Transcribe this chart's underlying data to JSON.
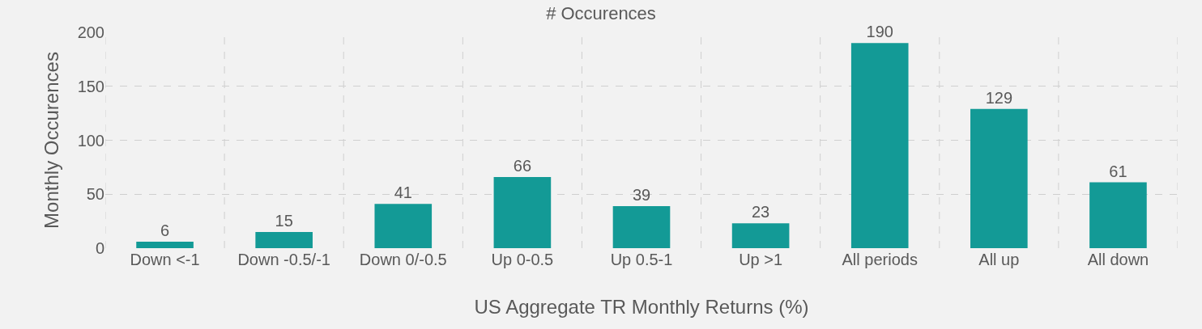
{
  "chart_data": {
    "type": "bar",
    "title": "# Occurences",
    "xlabel": "US Aggregate TR Monthly Returns (%)",
    "ylabel": "Monthly Occurences",
    "categories": [
      "Down <-1",
      "Down -0.5/-1",
      "Down 0/-0.5",
      "Up 0-0.5",
      "Up 0.5-1",
      "Up >1",
      "All periods",
      "All up",
      "All down"
    ],
    "values": [
      6,
      15,
      41,
      66,
      39,
      23,
      190,
      129,
      61
    ],
    "color": "#139a96",
    "ylim": [
      0,
      200
    ],
    "yticks": [
      0,
      50,
      100,
      150,
      200
    ],
    "grid": true,
    "data_labels": true
  }
}
